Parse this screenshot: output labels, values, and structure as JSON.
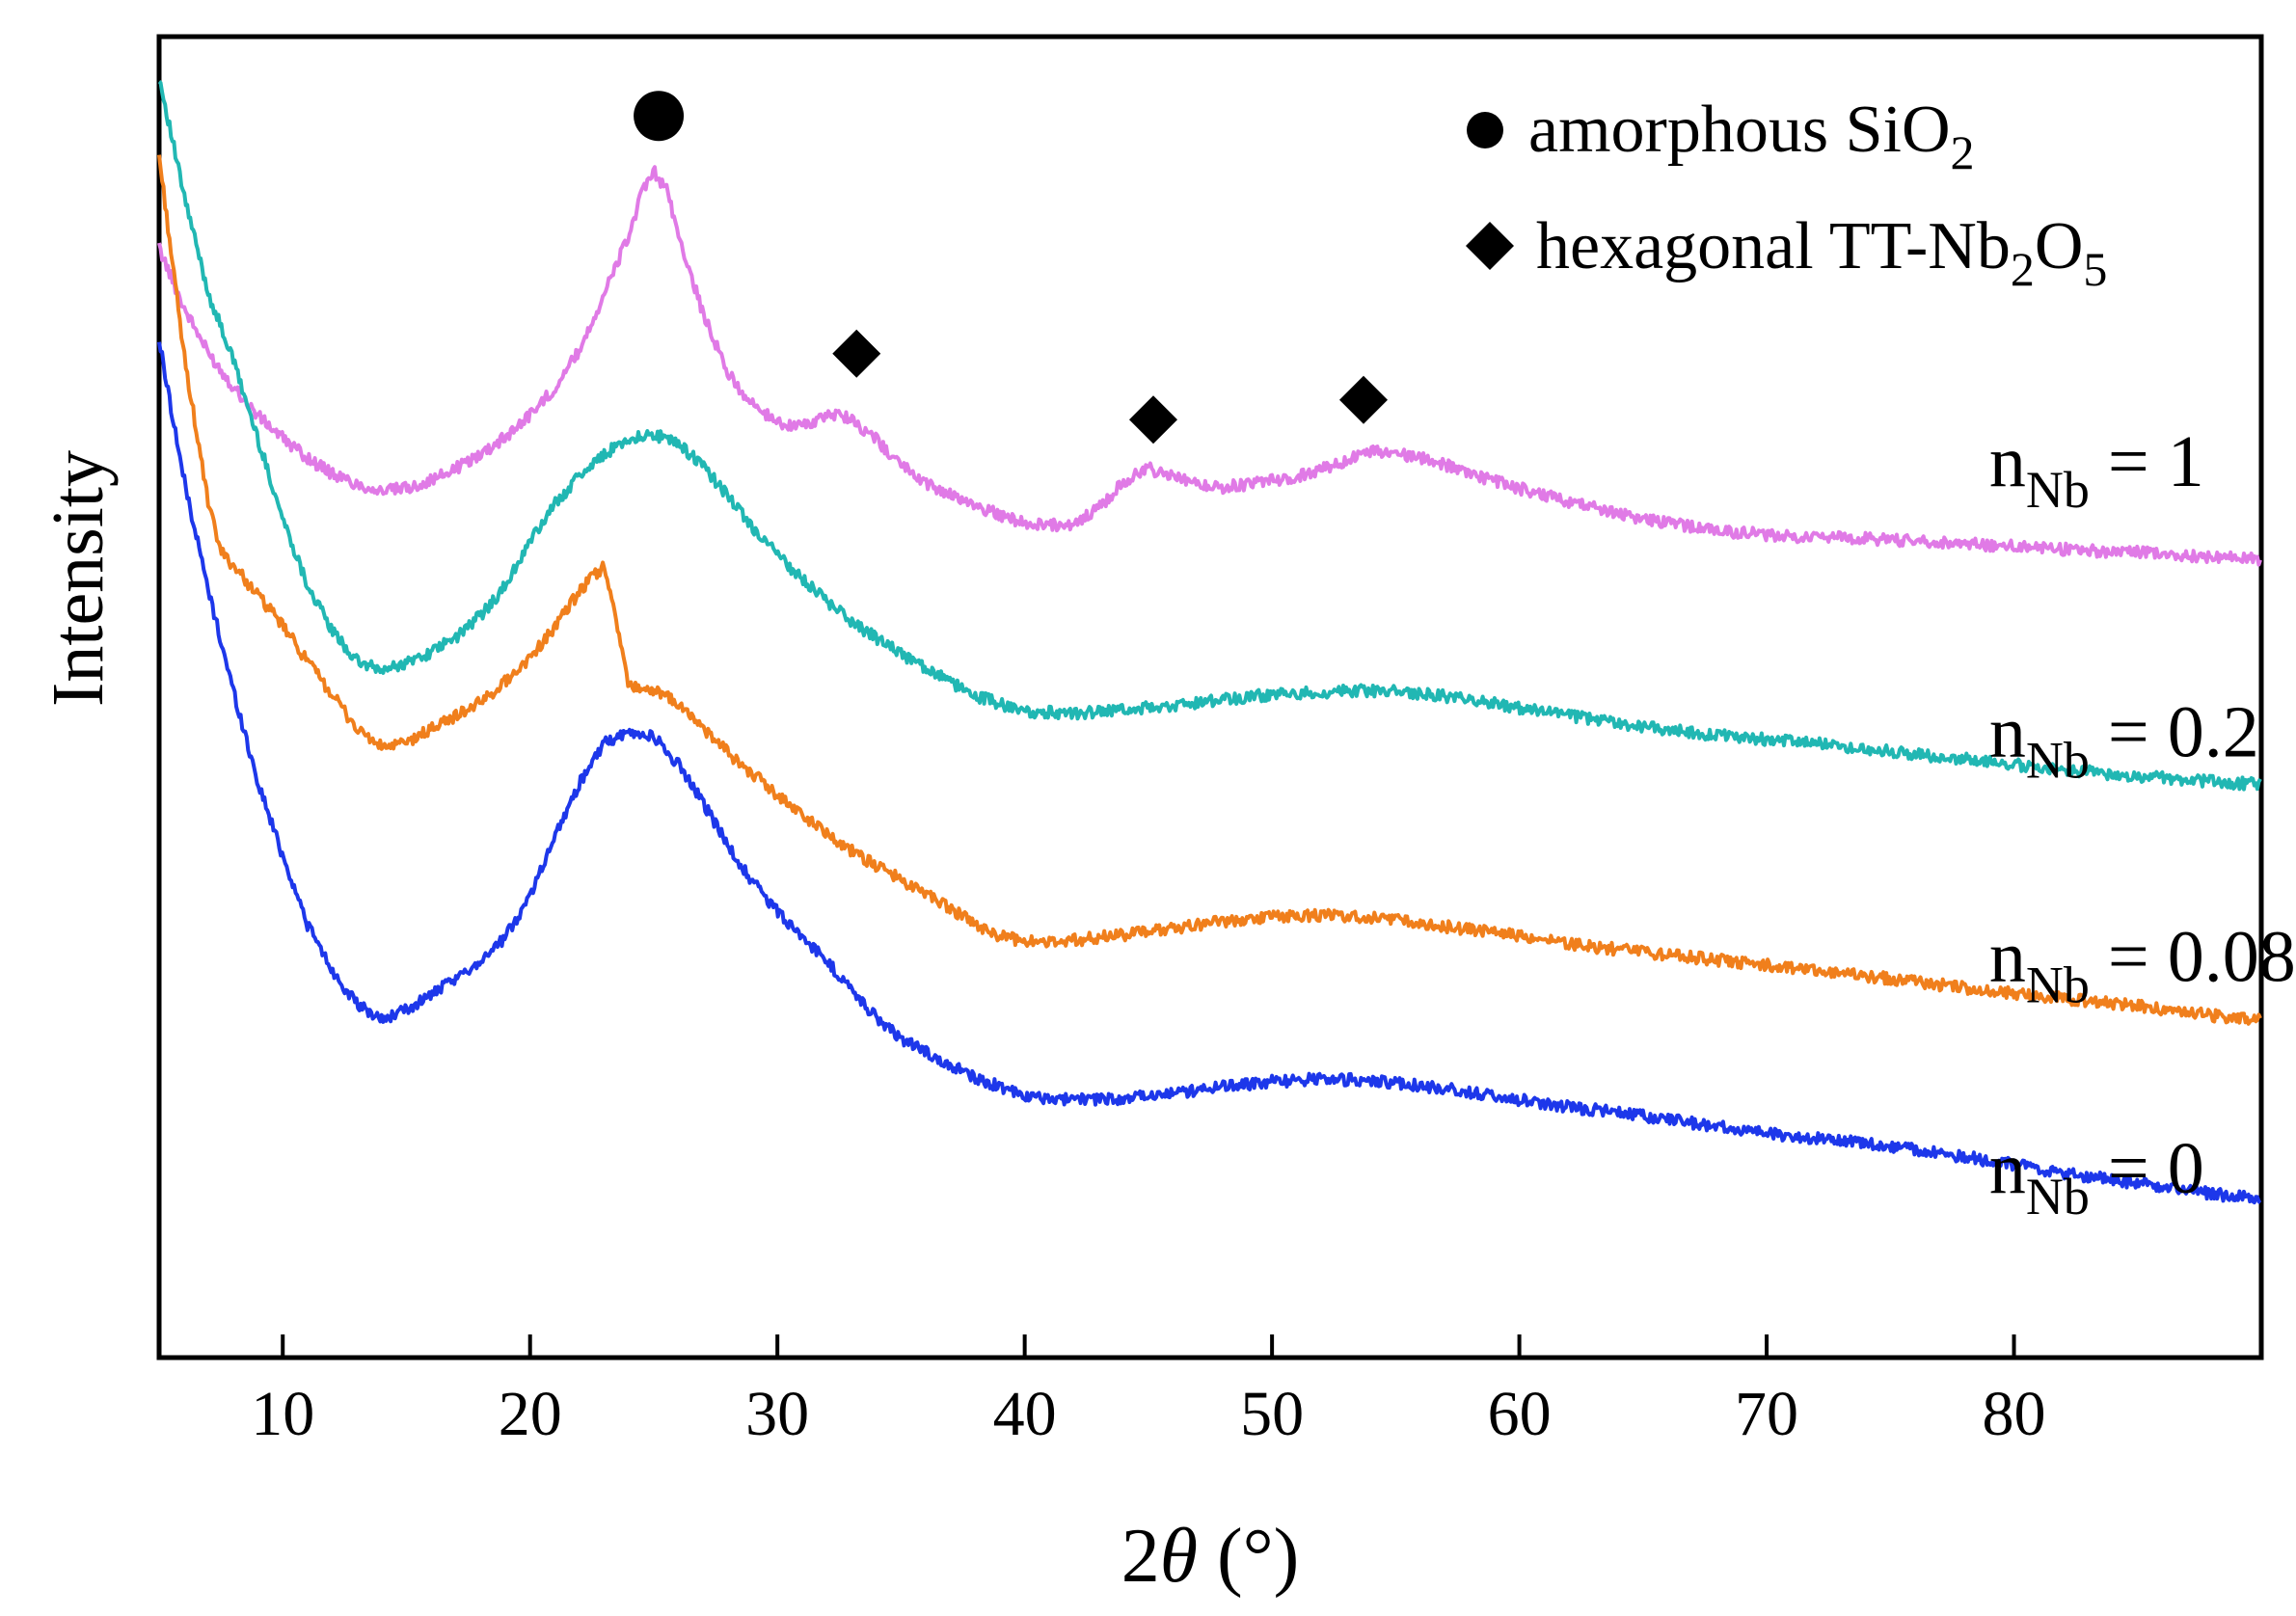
{
  "chart_data": {
    "type": "line",
    "title": "",
    "xlabel_prefix": "2",
    "xlabel_symbol": "θ",
    "xlabel_suffix": " (°)",
    "ylabel": "Intensity",
    "xlim": [
      5,
      90
    ],
    "ylim": [
      0,
      100
    ],
    "x_ticks": [
      10,
      20,
      30,
      40,
      50,
      60,
      70,
      80
    ],
    "y_ticks_shown": false,
    "grid": false,
    "legend": {
      "placement": "top-right",
      "entries": [
        {
          "marker": "circle",
          "text": "amorphous SiO",
          "sub": "2",
          "tail": ""
        },
        {
          "marker": "diamond",
          "text": "hexagonal TT-Nb",
          "sub": "2",
          "mid": "O",
          "sub2": "5"
        }
      ]
    },
    "annotations": [
      {
        "marker": "circle",
        "x": 25.2,
        "y": 94.0,
        "label": "amorphous SiO2 peak"
      },
      {
        "marker": "diamond",
        "x": 33.2,
        "y": 76.0,
        "label": "TT-Nb2O5 peak"
      },
      {
        "marker": "diamond",
        "x": 45.2,
        "y": 71.0,
        "label": "TT-Nb2O5 peak"
      },
      {
        "marker": "diamond",
        "x": 53.7,
        "y": 72.5,
        "label": "TT-Nb2O5 peak"
      }
    ],
    "series": [
      {
        "name": "n_Nb = 1",
        "label_base": "n",
        "label_sub": "Nb",
        "label_tail": " = 1",
        "color": "#e07ae6",
        "x": [
          5,
          6,
          7,
          8,
          9,
          10,
          11,
          12,
          13,
          14,
          15,
          16,
          17,
          18,
          19,
          20,
          21,
          22,
          23,
          24,
          24.5,
          25,
          25.5,
          26,
          27,
          28,
          29,
          30,
          31,
          32,
          32.5,
          33,
          34,
          35,
          36,
          37,
          38,
          39,
          40,
          41,
          42,
          43,
          44,
          45,
          46,
          47,
          48,
          49,
          50,
          51,
          52,
          53,
          54,
          55,
          56,
          57,
          58,
          60,
          62,
          65,
          68,
          70,
          72,
          74,
          76,
          78,
          80,
          82,
          84,
          86,
          88,
          90
        ],
        "y": [
          84.0,
          79.5,
          76.0,
          73.5,
          71.3,
          69.6,
          68.1,
          66.9,
          66.1,
          65.6,
          65.8,
          66.4,
          67.3,
          68.4,
          69.7,
          71.4,
          73.4,
          76.3,
          80.5,
          85.0,
          88.0,
          89.8,
          88.5,
          85.0,
          79.0,
          74.5,
          72.1,
          70.8,
          70.5,
          71.2,
          71.5,
          71.0,
          69.5,
          67.6,
          66.2,
          65.3,
          64.5,
          63.8,
          63.2,
          63.0,
          63.1,
          64.3,
          66.3,
          67.3,
          66.7,
          66.0,
          65.9,
          66.1,
          66.4,
          66.7,
          67.3,
          67.9,
          68.6,
          68.5,
          68.1,
          67.6,
          66.9,
          65.8,
          64.8,
          63.5,
          62.6,
          62.3,
          62.1,
          62.0,
          61.8,
          61.6,
          61.4,
          61.2,
          61.0,
          60.9,
          60.6,
          60.4
        ]
      },
      {
        "name": "n_Nb = 0.2",
        "label_base": "n",
        "label_sub": "Nb",
        "label_tail": " = 0.2",
        "color": "#21b7b3",
        "x": [
          5,
          6,
          7,
          8,
          9,
          10,
          11,
          12,
          13,
          14,
          15,
          16,
          17,
          18,
          19,
          20,
          21,
          22,
          23,
          24,
          25,
          26,
          27,
          28,
          29,
          30,
          31,
          32,
          33,
          34,
          35,
          36,
          37,
          38,
          39,
          40,
          42,
          44,
          46,
          48,
          50,
          52,
          54,
          56,
          58,
          60,
          62,
          65,
          68,
          70,
          72,
          75,
          78,
          80,
          82,
          85,
          88,
          90
        ],
        "y": [
          97.0,
          88.0,
          80.5,
          75.5,
          69.5,
          63.5,
          58.5,
          55.0,
          52.7,
          52.0,
          52.6,
          53.4,
          54.5,
          56.2,
          58.4,
          61.8,
          64.6,
          66.8,
          68.4,
          69.6,
          69.9,
          69.2,
          67.5,
          65.2,
          62.8,
          60.8,
          58.9,
          57.3,
          55.7,
          54.5,
          53.3,
          52.2,
          51.1,
          50.1,
          49.5,
          48.9,
          48.8,
          49.0,
          49.4,
          49.8,
          50.2,
          50.4,
          50.5,
          50.3,
          49.8,
          49.2,
          48.6,
          47.8,
          47.1,
          46.8,
          46.5,
          45.9,
          45.3,
          44.9,
          44.5,
          44.0,
          43.6,
          43.4
        ]
      },
      {
        "name": "n_Nb = 0.08",
        "label_base": "n",
        "label_sub": "Nb",
        "label_tail": " = 0.08",
        "color": "#f07f1c",
        "x": [
          5,
          6,
          7,
          7.5,
          8,
          9,
          10,
          11,
          12,
          13,
          14,
          15,
          16,
          17,
          18,
          19,
          20,
          21,
          22,
          23,
          24,
          25,
          26,
          27,
          28,
          29,
          30,
          31,
          32,
          33,
          34,
          35,
          36,
          37,
          38,
          39,
          40,
          42,
          44,
          46,
          48,
          50,
          52,
          54,
          56,
          58,
          60,
          62,
          65,
          68,
          70,
          72,
          75,
          78,
          80,
          82,
          85,
          88,
          90
        ],
        "y": [
          91.0,
          76.0,
          64.5,
          61.0,
          60.0,
          57.7,
          55.4,
          52.7,
          50.2,
          47.6,
          46.2,
          46.5,
          47.6,
          48.6,
          49.6,
          51.2,
          53.0,
          55.3,
          58.0,
          60.0,
          50.9,
          50.5,
          49.5,
          47.6,
          45.8,
          44.2,
          42.6,
          41.1,
          39.7,
          38.4,
          37.2,
          36.2,
          35.1,
          34.0,
          32.8,
          31.9,
          31.5,
          31.6,
          32.0,
          32.5,
          33.0,
          33.4,
          33.5,
          33.3,
          32.9,
          32.4,
          31.9,
          31.3,
          30.7,
          30.1,
          29.7,
          29.3,
          28.7,
          28.0,
          27.6,
          27.2,
          26.6,
          25.9,
          25.5
        ]
      },
      {
        "name": "n_Nb = 0",
        "label_base": "n",
        "label_sub": "Nb",
        "label_tail": " = 0",
        "color": "#1d37ea",
        "x": [
          5,
          6,
          7,
          8,
          9,
          10,
          11,
          12,
          13,
          14,
          15,
          16,
          17,
          18,
          19,
          20,
          21,
          22,
          23,
          24,
          25,
          26,
          27,
          28,
          29,
          30,
          31,
          32,
          33,
          34,
          35,
          36,
          37,
          38,
          39,
          40,
          42,
          44,
          46,
          48,
          50,
          52,
          54,
          56,
          58,
          60,
          62,
          65,
          68,
          70,
          72,
          75,
          78,
          80,
          82,
          85,
          88,
          90
        ],
        "y": [
          77.0,
          66.5,
          58.0,
          50.5,
          43.5,
          38.0,
          32.8,
          29.3,
          26.7,
          25.6,
          26.3,
          27.5,
          28.6,
          30.1,
          31.8,
          35.0,
          39.5,
          43.5,
          46.5,
          47.3,
          47.0,
          44.9,
          42.0,
          38.8,
          36.0,
          33.8,
          31.8,
          30.0,
          27.8,
          25.7,
          24.2,
          23.1,
          22.2,
          21.2,
          20.5,
          19.8,
          19.5,
          19.6,
          20.0,
          20.5,
          20.9,
          21.1,
          21.0,
          20.6,
          20.1,
          19.5,
          19.0,
          18.3,
          17.5,
          17.0,
          16.6,
          16.0,
          15.2,
          14.6,
          14.0,
          13.2,
          12.4,
          12.0
        ]
      }
    ]
  }
}
